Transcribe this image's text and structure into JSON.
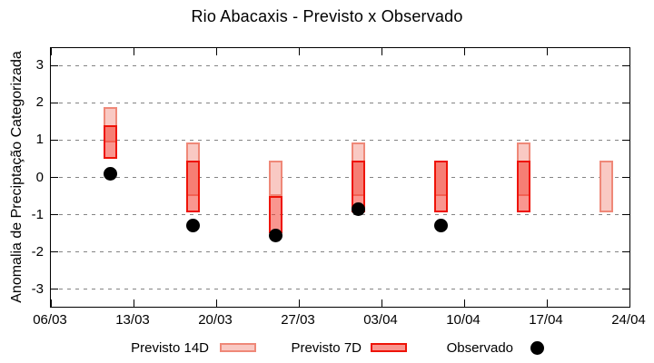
{
  "chart_data": {
    "type": "bar",
    "subtype": "range-bars-with-scatter-overlay",
    "title": "Rio Abacaxis - Previsto x Observado",
    "xlabel": "",
    "ylabel": "Anomalia de Preciptação Categorizada",
    "ylim": [
      -3.475,
      3.475
    ],
    "y_ticks": [
      3,
      2,
      1,
      0,
      -1,
      -2,
      -3
    ],
    "x_range_days": [
      0,
      49
    ],
    "x_ticks": [
      {
        "day": 0,
        "label": "06/03"
      },
      {
        "day": 7,
        "label": "13/03"
      },
      {
        "day": 14,
        "label": "20/03"
      },
      {
        "day": 21,
        "label": "27/03"
      },
      {
        "day": 28,
        "label": "03/04"
      },
      {
        "day": 35,
        "label": "10/04"
      },
      {
        "day": 42,
        "label": "17/04"
      },
      {
        "day": 49,
        "label": "24/04"
      }
    ],
    "grid": "horizontal dotted lines at integer y values, ticks mirrored on all four borders",
    "legend_position": "bottom-center, outside plot",
    "series": [
      {
        "name": "Previsto 14D",
        "type": "range-bar",
        "color_fill": "#f9c9c3",
        "color_border": "#ef8878",
        "points": [
          {
            "date": "11/03",
            "day": 5,
            "low": 0.95,
            "high": 1.9
          },
          {
            "date": "18/03",
            "day": 12,
            "low": -0.5,
            "high": 0.95
          },
          {
            "date": "25/03",
            "day": 19,
            "low": -0.5,
            "high": 0.45
          },
          {
            "date": "01/04",
            "day": 26,
            "low": -0.5,
            "high": 0.95
          },
          {
            "date": "08/04",
            "day": 33,
            "low": -0.5,
            "high": 0.45
          },
          {
            "date": "15/04",
            "day": 40,
            "low": -0.5,
            "high": 0.95
          },
          {
            "date": "22/04",
            "day": 47,
            "low": -0.95,
            "high": 0.45
          }
        ]
      },
      {
        "name": "Previsto 7D",
        "type": "range-bar",
        "color_fill": "#f44033",
        "fill_alpha": 0.55,
        "color_border": "#ee1408",
        "points": [
          {
            "date": "11/03",
            "day": 5,
            "low": 0.5,
            "high": 1.4
          },
          {
            "date": "18/03",
            "day": 12,
            "low": -0.95,
            "high": 0.45
          },
          {
            "date": "25/03",
            "day": 19,
            "low": -1.5,
            "high": -0.5
          },
          {
            "date": "01/04",
            "day": 26,
            "low": -0.95,
            "high": 0.45
          },
          {
            "date": "08/04",
            "day": 33,
            "low": -0.95,
            "high": 0.45
          },
          {
            "date": "15/04",
            "day": 40,
            "low": -0.95,
            "high": 0.45
          }
        ]
      },
      {
        "name": "Observado",
        "type": "scatter",
        "color": "#000000",
        "points": [
          {
            "date": "11/03",
            "day": 5,
            "value": 0.1
          },
          {
            "date": "18/03",
            "day": 12,
            "value": -1.3
          },
          {
            "date": "25/03",
            "day": 19,
            "value": -1.55
          },
          {
            "date": "01/04",
            "day": 26,
            "value": -0.85
          },
          {
            "date": "08/04",
            "day": 33,
            "value": -1.3
          }
        ]
      }
    ]
  },
  "legend": {
    "items": [
      {
        "label": "Previsto 14D",
        "swatch": "box-light-pink"
      },
      {
        "label": "Previsto 7D",
        "swatch": "box-red"
      },
      {
        "label": "Observado",
        "swatch": "black-dot"
      }
    ]
  }
}
